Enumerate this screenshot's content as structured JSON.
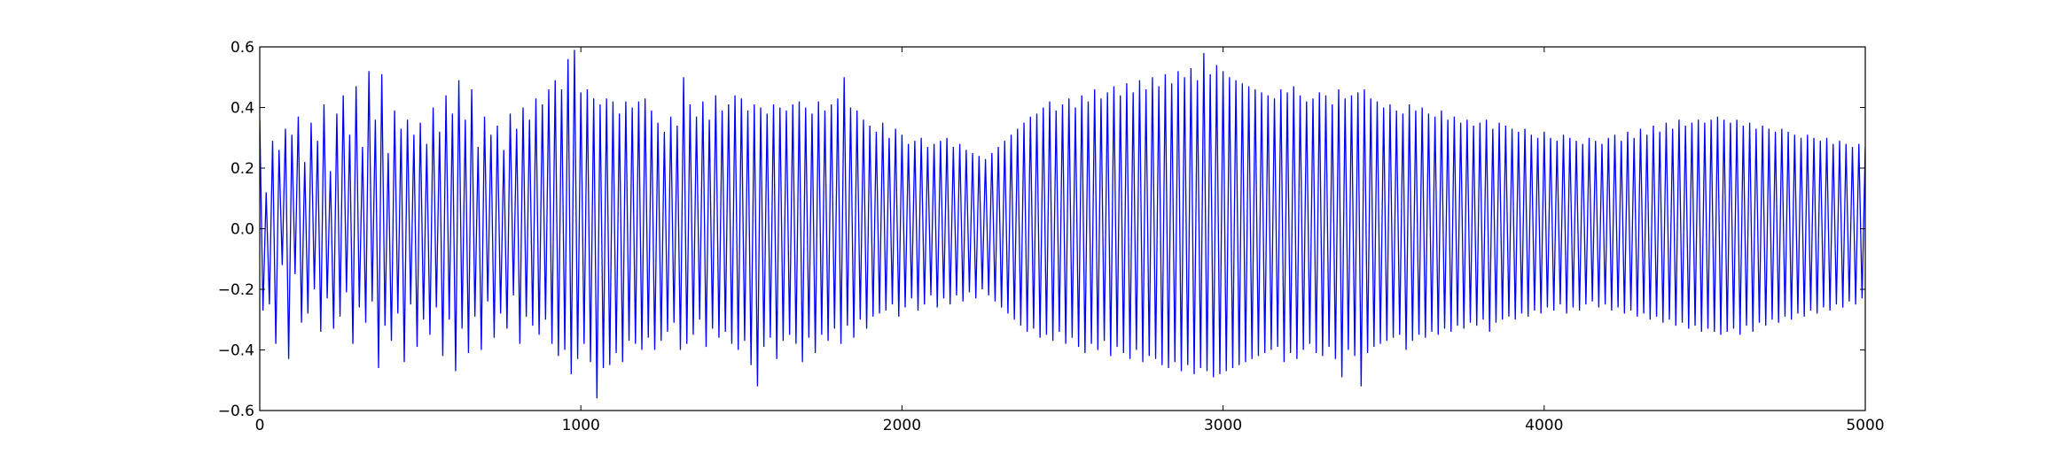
{
  "chart_data": {
    "type": "line",
    "title": "",
    "xlabel": "",
    "ylabel": "",
    "xlim": [
      0,
      5000
    ],
    "ylim": [
      -0.6,
      0.6
    ],
    "grid": false,
    "legend": "none",
    "x_ticks": [
      0,
      1000,
      2000,
      3000,
      4000,
      5000
    ],
    "x_tick_labels": [
      "0",
      "1000",
      "2000",
      "3000",
      "4000",
      "5000"
    ],
    "y_ticks": [
      -0.6,
      -0.4,
      -0.2,
      0.0,
      0.2,
      0.4,
      0.6
    ],
    "y_tick_labels": [
      "−0.6",
      "−0.4",
      "−0.2",
      "0.0",
      "0.2",
      "0.4",
      "0.6"
    ],
    "line_color": "#0000ff",
    "series": [
      {
        "x_start": 0,
        "x_step": 10,
        "values": [
          0.36,
          -0.27,
          0.12,
          -0.25,
          0.29,
          -0.38,
          0.26,
          -0.12,
          0.33,
          -0.43,
          0.31,
          -0.15,
          0.37,
          -0.31,
          0.22,
          -0.28,
          0.35,
          -0.2,
          0.29,
          -0.34,
          0.41,
          -0.23,
          0.19,
          -0.33,
          0.38,
          -0.29,
          0.44,
          -0.21,
          0.31,
          -0.38,
          0.47,
          -0.26,
          0.27,
          -0.31,
          0.52,
          -0.24,
          0.36,
          -0.46,
          0.51,
          -0.32,
          0.25,
          -0.37,
          0.39,
          -0.28,
          0.33,
          -0.44,
          0.36,
          -0.25,
          0.31,
          -0.39,
          0.35,
          -0.3,
          0.28,
          -0.35,
          0.4,
          -0.26,
          0.32,
          -0.42,
          0.44,
          -0.3,
          0.38,
          -0.47,
          0.49,
          -0.33,
          0.36,
          -0.41,
          0.46,
          -0.29,
          0.27,
          -0.4,
          0.37,
          -0.24,
          0.31,
          -0.36,
          0.34,
          -0.28,
          0.26,
          -0.33,
          0.38,
          -0.22,
          0.33,
          -0.38,
          0.4,
          -0.29,
          0.36,
          -0.32,
          0.43,
          -0.35,
          0.41,
          -0.3,
          0.46,
          -0.38,
          0.49,
          -0.42,
          0.46,
          -0.4,
          0.56,
          -0.48,
          0.59,
          -0.43,
          0.45,
          -0.38,
          0.46,
          -0.44,
          0.43,
          -0.56,
          0.41,
          -0.46,
          0.43,
          -0.45,
          0.42,
          -0.41,
          0.38,
          -0.44,
          0.42,
          -0.37,
          0.4,
          -0.38,
          0.42,
          -0.4,
          0.43,
          -0.36,
          0.39,
          -0.4,
          0.35,
          -0.37,
          0.32,
          -0.34,
          0.37,
          -0.31,
          0.34,
          -0.4,
          0.5,
          -0.38,
          0.41,
          -0.35,
          0.37,
          -0.3,
          0.42,
          -0.39,
          0.36,
          -0.33,
          0.44,
          -0.36,
          0.39,
          -0.34,
          0.41,
          -0.38,
          0.44,
          -0.4,
          0.43,
          -0.37,
          0.39,
          -0.45,
          0.41,
          -0.52,
          0.4,
          -0.39,
          0.38,
          -0.36,
          0.41,
          -0.43,
          0.4,
          -0.37,
          0.39,
          -0.35,
          0.41,
          -0.38,
          0.42,
          -0.44,
          0.4,
          -0.36,
          0.38,
          -0.41,
          0.42,
          -0.35,
          0.39,
          -0.37,
          0.41,
          -0.33,
          0.43,
          -0.38,
          0.5,
          -0.32,
          0.4,
          -0.36,
          0.39,
          -0.3,
          0.36,
          -0.33,
          0.34,
          -0.29,
          0.32,
          -0.28,
          0.35,
          -0.27,
          0.3,
          -0.25,
          0.33,
          -0.29,
          0.31,
          -0.26,
          0.28,
          -0.23,
          0.29,
          -0.27,
          0.3,
          -0.25,
          0.27,
          -0.22,
          0.28,
          -0.26,
          0.29,
          -0.23,
          0.3,
          -0.25,
          0.27,
          -0.22,
          0.28,
          -0.24,
          0.26,
          -0.21,
          0.25,
          -0.23,
          0.24,
          -0.2,
          0.23,
          -0.22,
          0.25,
          -0.24,
          0.27,
          -0.26,
          0.29,
          -0.28,
          0.31,
          -0.3,
          0.33,
          -0.32,
          0.35,
          -0.34,
          0.37,
          -0.33,
          0.38,
          -0.36,
          0.4,
          -0.35,
          0.42,
          -0.37,
          0.39,
          -0.34,
          0.41,
          -0.38,
          0.43,
          -0.36,
          0.4,
          -0.39,
          0.44,
          -0.41,
          0.42,
          -0.38,
          0.46,
          -0.4,
          0.43,
          -0.37,
          0.45,
          -0.42,
          0.47,
          -0.39,
          0.44,
          -0.41,
          0.48,
          -0.43,
          0.45,
          -0.4,
          0.49,
          -0.44,
          0.46,
          -0.42,
          0.5,
          -0.43,
          0.47,
          -0.45,
          0.51,
          -0.46,
          0.48,
          -0.44,
          0.52,
          -0.47,
          0.5,
          -0.45,
          0.53,
          -0.48,
          0.49,
          -0.46,
          0.58,
          -0.47,
          0.51,
          -0.49,
          0.54,
          -0.48,
          0.52,
          -0.47,
          0.5,
          -0.46,
          0.49,
          -0.45,
          0.48,
          -0.44,
          0.47,
          -0.43,
          0.46,
          -0.42,
          0.45,
          -0.41,
          0.44,
          -0.4,
          0.43,
          -0.39,
          0.46,
          -0.44,
          0.45,
          -0.41,
          0.47,
          -0.43,
          0.44,
          -0.4,
          0.42,
          -0.38,
          0.43,
          -0.41,
          0.45,
          -0.42,
          0.44,
          -0.39,
          0.41,
          -0.43,
          0.46,
          -0.49,
          0.43,
          -0.4,
          0.44,
          -0.42,
          0.45,
          -0.52,
          0.46,
          -0.41,
          0.43,
          -0.39,
          0.42,
          -0.38,
          0.4,
          -0.37,
          0.41,
          -0.36,
          0.39,
          -0.35,
          0.38,
          -0.4,
          0.41,
          -0.37,
          0.39,
          -0.35,
          0.4,
          -0.36,
          0.38,
          -0.34,
          0.37,
          -0.35,
          0.39,
          -0.33,
          0.36,
          -0.34,
          0.37,
          -0.32,
          0.35,
          -0.33,
          0.36,
          -0.31,
          0.34,
          -0.32,
          0.35,
          -0.3,
          0.36,
          -0.34,
          0.33,
          -0.31,
          0.35,
          -0.3,
          0.34,
          -0.29,
          0.33,
          -0.3,
          0.32,
          -0.28,
          0.33,
          -0.29,
          0.31,
          -0.27,
          0.3,
          -0.28,
          0.32,
          -0.26,
          0.3,
          -0.27,
          0.29,
          -0.25,
          0.31,
          -0.28,
          0.3,
          -0.26,
          0.29,
          -0.27,
          0.28,
          -0.25,
          0.3,
          -0.24,
          0.29,
          -0.26,
          0.28,
          -0.25,
          0.3,
          -0.27,
          0.31,
          -0.26,
          0.29,
          -0.28,
          0.32,
          -0.27,
          0.3,
          -0.29,
          0.33,
          -0.28,
          0.31,
          -0.3,
          0.34,
          -0.29,
          0.32,
          -0.31,
          0.35,
          -0.3,
          0.33,
          -0.32,
          0.36,
          -0.31,
          0.34,
          -0.33,
          0.35,
          -0.32,
          0.36,
          -0.34,
          0.35,
          -0.33,
          0.36,
          -0.34,
          0.37,
          -0.35,
          0.36,
          -0.34,
          0.35,
          -0.33,
          0.36,
          -0.35,
          0.34,
          -0.32,
          0.35,
          -0.34,
          0.33,
          -0.31,
          0.34,
          -0.32,
          0.33,
          -0.3,
          0.32,
          -0.31,
          0.33,
          -0.29,
          0.32,
          -0.3,
          0.31,
          -0.28,
          0.3,
          -0.29,
          0.31,
          -0.27,
          0.3,
          -0.28,
          0.29,
          -0.26,
          0.3,
          -0.27,
          0.28,
          -0.25,
          0.29,
          -0.26,
          0.28,
          -0.24,
          0.27,
          -0.25,
          0.28,
          -0.23,
          0.27,
          -0.24,
          0.26,
          -0.22,
          0.25
        ]
      }
    ]
  }
}
